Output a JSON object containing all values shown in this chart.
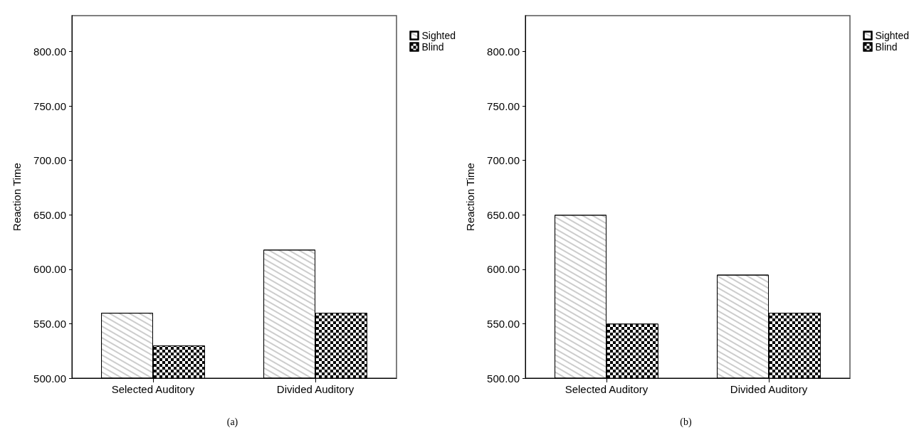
{
  "chart_data": [
    {
      "type": "bar",
      "categories": [
        "Selected Auditory",
        "Divided Auditory"
      ],
      "ylabel": "Reaction Time",
      "ylim": [
        500,
        833
      ],
      "yticks": [
        {
          "value": 500,
          "label": "500.00"
        },
        {
          "value": 550,
          "label": "550.00"
        },
        {
          "value": 600,
          "label": "600.00"
        },
        {
          "value": 650,
          "label": "650.00"
        },
        {
          "value": 700,
          "label": "700.00"
        },
        {
          "value": 750,
          "label": "750.00"
        },
        {
          "value": 800,
          "label": "800.00"
        }
      ],
      "series": [
        {
          "name": "Sighted",
          "color": "#ffffff",
          "values": [
            560,
            618
          ]
        },
        {
          "name": "Blind",
          "color": "#000000",
          "values": [
            530,
            560
          ]
        }
      ],
      "legend": "top right",
      "grid": false,
      "annotations": [
        "(a)"
      ]
    },
    {
      "type": "bar",
      "categories": [
        "Selected Auditory",
        "Divided Auditory"
      ],
      "ylabel": "Reaction Time",
      "ylim": [
        500,
        833
      ],
      "yticks": [
        {
          "value": 500,
          "label": "500.00"
        },
        {
          "value": 550,
          "label": "550.00"
        },
        {
          "value": 600,
          "label": "600.00"
        },
        {
          "value": 650,
          "label": "650.00"
        },
        {
          "value": 700,
          "label": "700.00"
        },
        {
          "value": 750,
          "label": "750.00"
        },
        {
          "value": 800,
          "label": "800.00"
        }
      ],
      "series": [
        {
          "name": "Sighted",
          "color": "#ffffff",
          "values": [
            650,
            595
          ]
        },
        {
          "name": "Blind",
          "color": "#000000",
          "values": [
            550,
            560
          ]
        }
      ],
      "legend": "top right",
      "grid": false,
      "annotations": [
        "(b)"
      ]
    }
  ]
}
